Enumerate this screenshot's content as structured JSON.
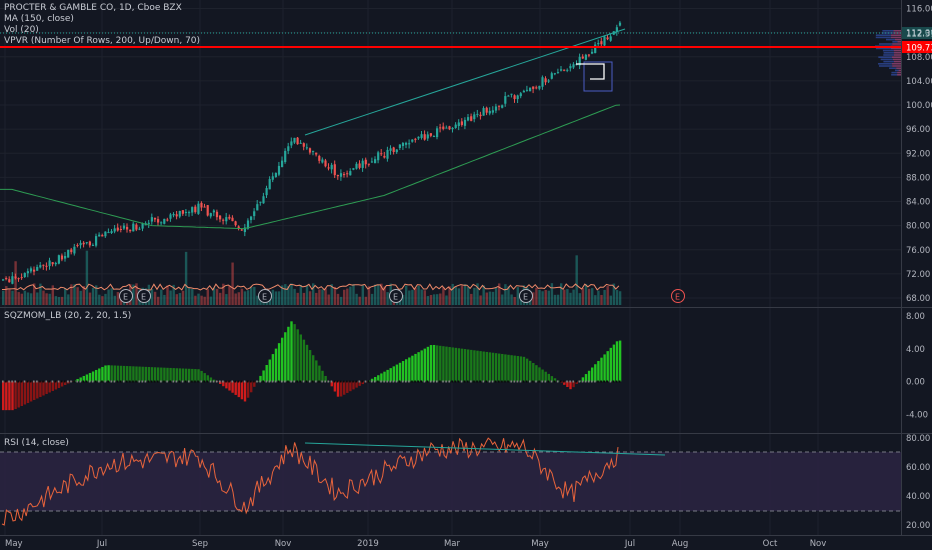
{
  "header": {
    "symbol_title": "PROCTER & GAMBLE CO, 1D, Cboe BZX",
    "ma_label": "MA (150, close)",
    "vol_label": "Vol (20)",
    "vpvr_label": "VPVR (Number Of Rows, 200, Up/Down, 70)"
  },
  "price_pane": {
    "y_ticks": [
      "116.00",
      "112.00",
      "108.00",
      "104.00",
      "100.00",
      "96.00",
      "92.00",
      "88.00",
      "84.00",
      "80.00",
      "76.00",
      "72.00",
      "68.00"
    ],
    "current_price_badge": "112.31",
    "resistance_badge": "109.73",
    "earnings_marker": "E"
  },
  "sqzmom_pane": {
    "label": "SQZMOM_LB (20, 2, 20, 1.5)",
    "y_ticks": [
      "8.00",
      "4.00",
      "0.00",
      "-4.00"
    ]
  },
  "rsi_pane": {
    "label": "RSI (14, close)",
    "y_ticks": [
      "80.00",
      "60.00",
      "40.00",
      "20.00"
    ]
  },
  "x_axis": {
    "labels": [
      "May",
      "Jul",
      "Sep",
      "Nov",
      "2019",
      "Mar",
      "May",
      "Jul",
      "Aug",
      "Oct",
      "Nov"
    ]
  },
  "colors": {
    "background": "#131722",
    "up_candle": "#26a69a",
    "down_candle": "#ef5350",
    "ma_line": "#2e9c53",
    "resistance_line": "#ff0000",
    "channel_line": "#26a69a",
    "rsi_line": "#e8643c",
    "rsi_band": "#3a2c5a",
    "sqz_up": "#22c322",
    "sqz_down": "#d01c1c"
  },
  "chart_data": [
    {
      "type": "candlestick",
      "title": "PROCTER & GAMBLE CO, 1D, Cboe BZX",
      "x_range": [
        "2018-05",
        "2019-11"
      ],
      "ylim": [
        66,
        118
      ],
      "key_points": [
        {
          "x": "2018-05",
          "y": 71.0
        },
        {
          "x": "2018-07",
          "y": 78.5
        },
        {
          "x": "2018-09",
          "y": 83.0
        },
        {
          "x": "2018-10",
          "y": 79.5
        },
        {
          "x": "2018-11",
          "y": 94.5
        },
        {
          "x": "2018-12",
          "y": 88.5
        },
        {
          "x": "2019-01",
          "y": 92.0
        },
        {
          "x": "2019-03",
          "y": 98.5
        },
        {
          "x": "2019-05",
          "y": 106.5
        },
        {
          "x": "2019-06",
          "y": 113.0
        }
      ],
      "ma150": [
        {
          "x": "2018-05",
          "y": 86.0
        },
        {
          "x": "2018-08",
          "y": 80.0
        },
        {
          "x": "2018-10",
          "y": 79.5
        },
        {
          "x": "2019-01",
          "y": 85.0
        },
        {
          "x": "2019-04",
          "y": 94.0
        },
        {
          "x": "2019-06",
          "y": 100.0
        }
      ],
      "resistance": 109.73,
      "last_price": 112.31
    },
    {
      "type": "bar",
      "title": "SQZMOM_LB (20, 2, 20, 1.5)",
      "ylim": [
        -6,
        8
      ],
      "key_points": [
        {
          "x": "2018-05",
          "y": -3.5
        },
        {
          "x": "2018-07",
          "y": 2.0
        },
        {
          "x": "2018-09",
          "y": 1.5
        },
        {
          "x": "2018-10",
          "y": -2.5
        },
        {
          "x": "2018-11",
          "y": 7.5
        },
        {
          "x": "2018-12",
          "y": -2.0
        },
        {
          "x": "2019-02",
          "y": 4.5
        },
        {
          "x": "2019-04",
          "y": 3.0
        },
        {
          "x": "2019-05",
          "y": -1.0
        },
        {
          "x": "2019-06",
          "y": 5.0
        }
      ]
    },
    {
      "type": "line",
      "title": "RSI (14, close)",
      "ylim": [
        18,
        82
      ],
      "bands": [
        30,
        70
      ],
      "key_points": [
        {
          "x": "2018-05",
          "y": 26
        },
        {
          "x": "2018-07",
          "y": 62
        },
        {
          "x": "2018-09",
          "y": 68
        },
        {
          "x": "2018-10",
          "y": 32
        },
        {
          "x": "2018-11",
          "y": 74
        },
        {
          "x": "2018-12",
          "y": 42
        },
        {
          "x": "2019-02",
          "y": 72
        },
        {
          "x": "2019-04",
          "y": 74
        },
        {
          "x": "2019-05",
          "y": 40
        },
        {
          "x": "2019-06",
          "y": 68
        }
      ]
    }
  ]
}
